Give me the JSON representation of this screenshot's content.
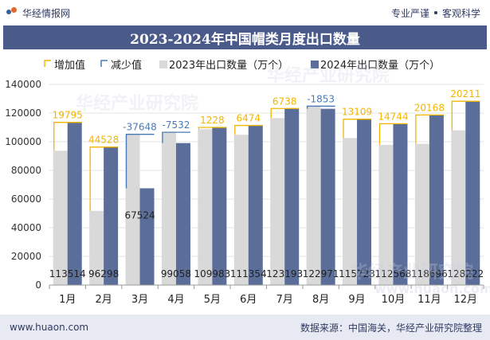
{
  "header": {
    "brand": "华经情报网",
    "tag1": "专业严谨",
    "tag2": "客观科学"
  },
  "title": "2023-2024年中国帽类月度出口数量",
  "footer": {
    "url": "www.huaon.com",
    "source": "数据来源：中国海关，华经产业研究院整理"
  },
  "watermark": {
    "text1": "华经产业研究院",
    "text2": "华经产业研究院",
    "url": "www.huaon.com"
  },
  "chart_data": {
    "type": "bar",
    "categories": [
      "1月",
      "2月",
      "3月",
      "4月",
      "5月",
      "6月",
      "7月",
      "8月",
      "9月",
      "10月",
      "11月",
      "12月"
    ],
    "series": [
      {
        "name": "2023年出口数量（万个）",
        "color": "#d9d9d9",
        "values": [
          93719,
          51770,
          105172,
          106590,
          108755,
          104880,
          116455,
          124824,
          102614,
          97824,
          98528,
          108011
        ]
      },
      {
        "name": "2024年出口数量（万个）",
        "color": "#5b6d99",
        "values": [
          113514,
          96298,
          67524,
          99058,
          109983,
          111354,
          123193,
          122971,
          115723,
          112568,
          118696,
          128222
        ]
      }
    ],
    "changes": [
      19795,
      44528,
      -37648,
      -7532,
      1228,
      6474,
      6738,
      -1853,
      13109,
      14744,
      20168,
      20211
    ],
    "legend": [
      {
        "name": "增加值",
        "color": "#f2b600"
      },
      {
        "name": "减少值",
        "color": "#4a7ab5"
      },
      {
        "name": "2023年出口数量（万个）",
        "color": "#d9d9d9"
      },
      {
        "name": "2024年出口数量（万个）",
        "color": "#5b6d99"
      }
    ],
    "ylim": [
      0,
      140000
    ],
    "yticks": [
      "0",
      "20000",
      "40000",
      "60000",
      "80000",
      "100000",
      "120000",
      "140000"
    ],
    "increase_color": "#f2b600",
    "decrease_color": "#4a7ab5",
    "legend_position": "top"
  }
}
